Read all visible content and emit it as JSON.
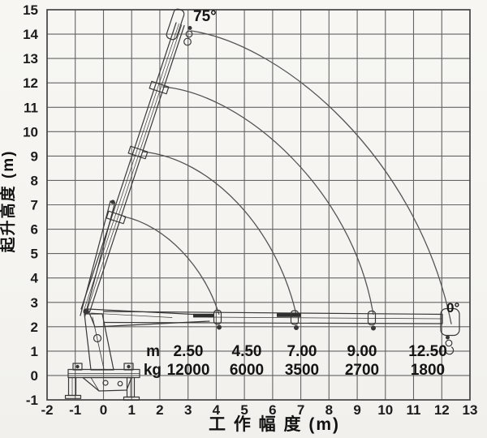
{
  "figure": {
    "kind": "truck-mounted crane working range / load chart",
    "angle_max_label": "75°",
    "angle_min_label": "0°"
  },
  "axes": {
    "x": {
      "title": "工 作 幅 度 (m)",
      "ticks": [
        "-2",
        "-1",
        "0",
        "1",
        "2",
        "3",
        "4",
        "5",
        "6",
        "7",
        "8",
        "9",
        "10",
        "11",
        "12",
        "13"
      ]
    },
    "y": {
      "title": "起升高度 (m)",
      "ticks": [
        "15",
        "14",
        "13",
        "12",
        "11",
        "10",
        "9",
        "8",
        "7",
        "6",
        "5",
        "4",
        "3",
        "2",
        "1",
        "0",
        "-1"
      ]
    }
  },
  "load_table": {
    "row_labels": {
      "radius": "m",
      "capacity": "kg"
    },
    "columns": [
      {
        "radius_m": "2.50",
        "capacity_kg": "12000"
      },
      {
        "radius_m": "4.50",
        "capacity_kg": "6000"
      },
      {
        "radius_m": "7.00",
        "capacity_kg": "3500"
      },
      {
        "radius_m": "9.00",
        "capacity_kg": "2700"
      },
      {
        "radius_m": "12.50",
        "capacity_kg": "1800"
      }
    ]
  },
  "chart_data": {
    "type": "line",
    "title": "",
    "xlabel": "工作幅度 (m)",
    "ylabel": "起升高度 (m)",
    "xlim": [
      -2,
      13
    ],
    "ylim": [
      -1,
      15
    ],
    "grid": true,
    "legend": "none",
    "boom_angle_range_deg": [
      0,
      75
    ],
    "load_chart": {
      "radius_m": [
        2.5,
        4.5,
        7.0,
        9.0,
        12.5
      ],
      "capacity_kg": [
        12000,
        6000,
        3500,
        2700,
        1800
      ]
    },
    "envelope_arcs": [
      {
        "name": "boom-extension-1",
        "bezier": [
          [
            0.71,
            6.52
          ],
          [
            2.23,
            6.15
          ],
          [
            3.59,
            4.42
          ],
          [
            4.1,
            2.5
          ]
        ]
      },
      {
        "name": "boom-extension-2",
        "bezier": [
          [
            1.4,
            9.18
          ],
          [
            3.82,
            8.88
          ],
          [
            6.12,
            6.09
          ],
          [
            6.84,
            2.5
          ]
        ]
      },
      {
        "name": "boom-extension-3",
        "bezier": [
          [
            2.09,
            11.84
          ],
          [
            4.97,
            11.57
          ],
          [
            8.86,
            7.58
          ],
          [
            9.57,
            2.5
          ]
        ]
      },
      {
        "name": "boom-extension-4",
        "bezier": [
          [
            3.1,
            14.14
          ],
          [
            6.41,
            13.57
          ],
          [
            11.16,
            8.91
          ],
          [
            12.34,
            2.1
          ]
        ]
      }
    ]
  }
}
